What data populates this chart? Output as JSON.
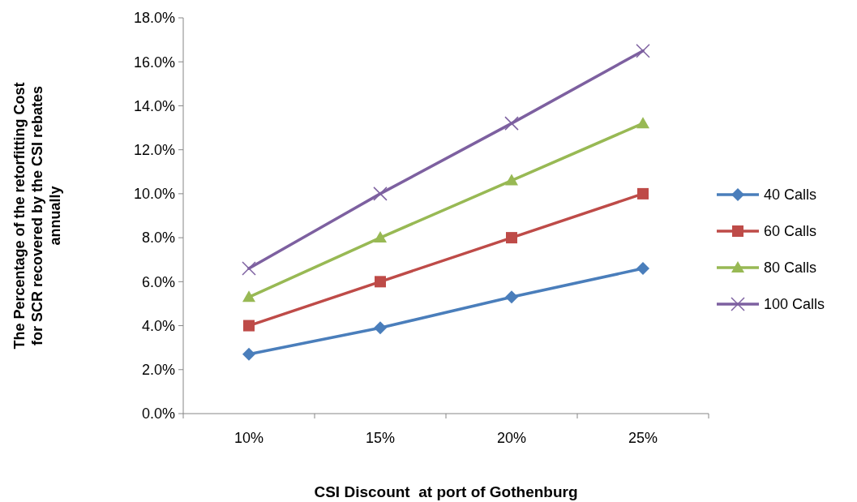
{
  "chart_data": {
    "type": "line",
    "xlabel": "CSI Discount  at port of Gothenburg",
    "ylabel": "The Percentage of the retorfitting Cost for SCR recovered by the CSI rebates annually",
    "categories": [
      "10%",
      "15%",
      "20%",
      "25%"
    ],
    "series": [
      {
        "name": "40 Calls",
        "color": "#4a7ebb",
        "marker": "diamond",
        "values": [
          2.7,
          3.9,
          5.3,
          6.6
        ]
      },
      {
        "name": "60 Calls",
        "color": "#be4b48",
        "marker": "square",
        "values": [
          4.0,
          6.0,
          8.0,
          10.0
        ]
      },
      {
        "name": "80 Calls",
        "color": "#98b954",
        "marker": "triangle",
        "values": [
          5.3,
          8.0,
          10.6,
          13.2
        ]
      },
      {
        "name": "100 Calls",
        "color": "#7d60a0",
        "marker": "cross",
        "values": [
          6.6,
          10.0,
          13.2,
          16.5
        ]
      }
    ],
    "ylim": [
      0,
      18
    ],
    "yticks": [
      {
        "value": 0,
        "label": "0.0%"
      },
      {
        "value": 2,
        "label": "2.0%"
      },
      {
        "value": 4,
        "label": "4.0%"
      },
      {
        "value": 6,
        "label": "6.0%"
      },
      {
        "value": 8,
        "label": "8.0%"
      },
      {
        "value": 10,
        "label": "10.0%"
      },
      {
        "value": 12,
        "label": "12.0%"
      },
      {
        "value": 14,
        "label": "14.0%"
      },
      {
        "value": 16,
        "label": "16.0%"
      },
      {
        "value": 18,
        "label": "18.0%"
      }
    ],
    "grid": false,
    "legend": "right"
  }
}
